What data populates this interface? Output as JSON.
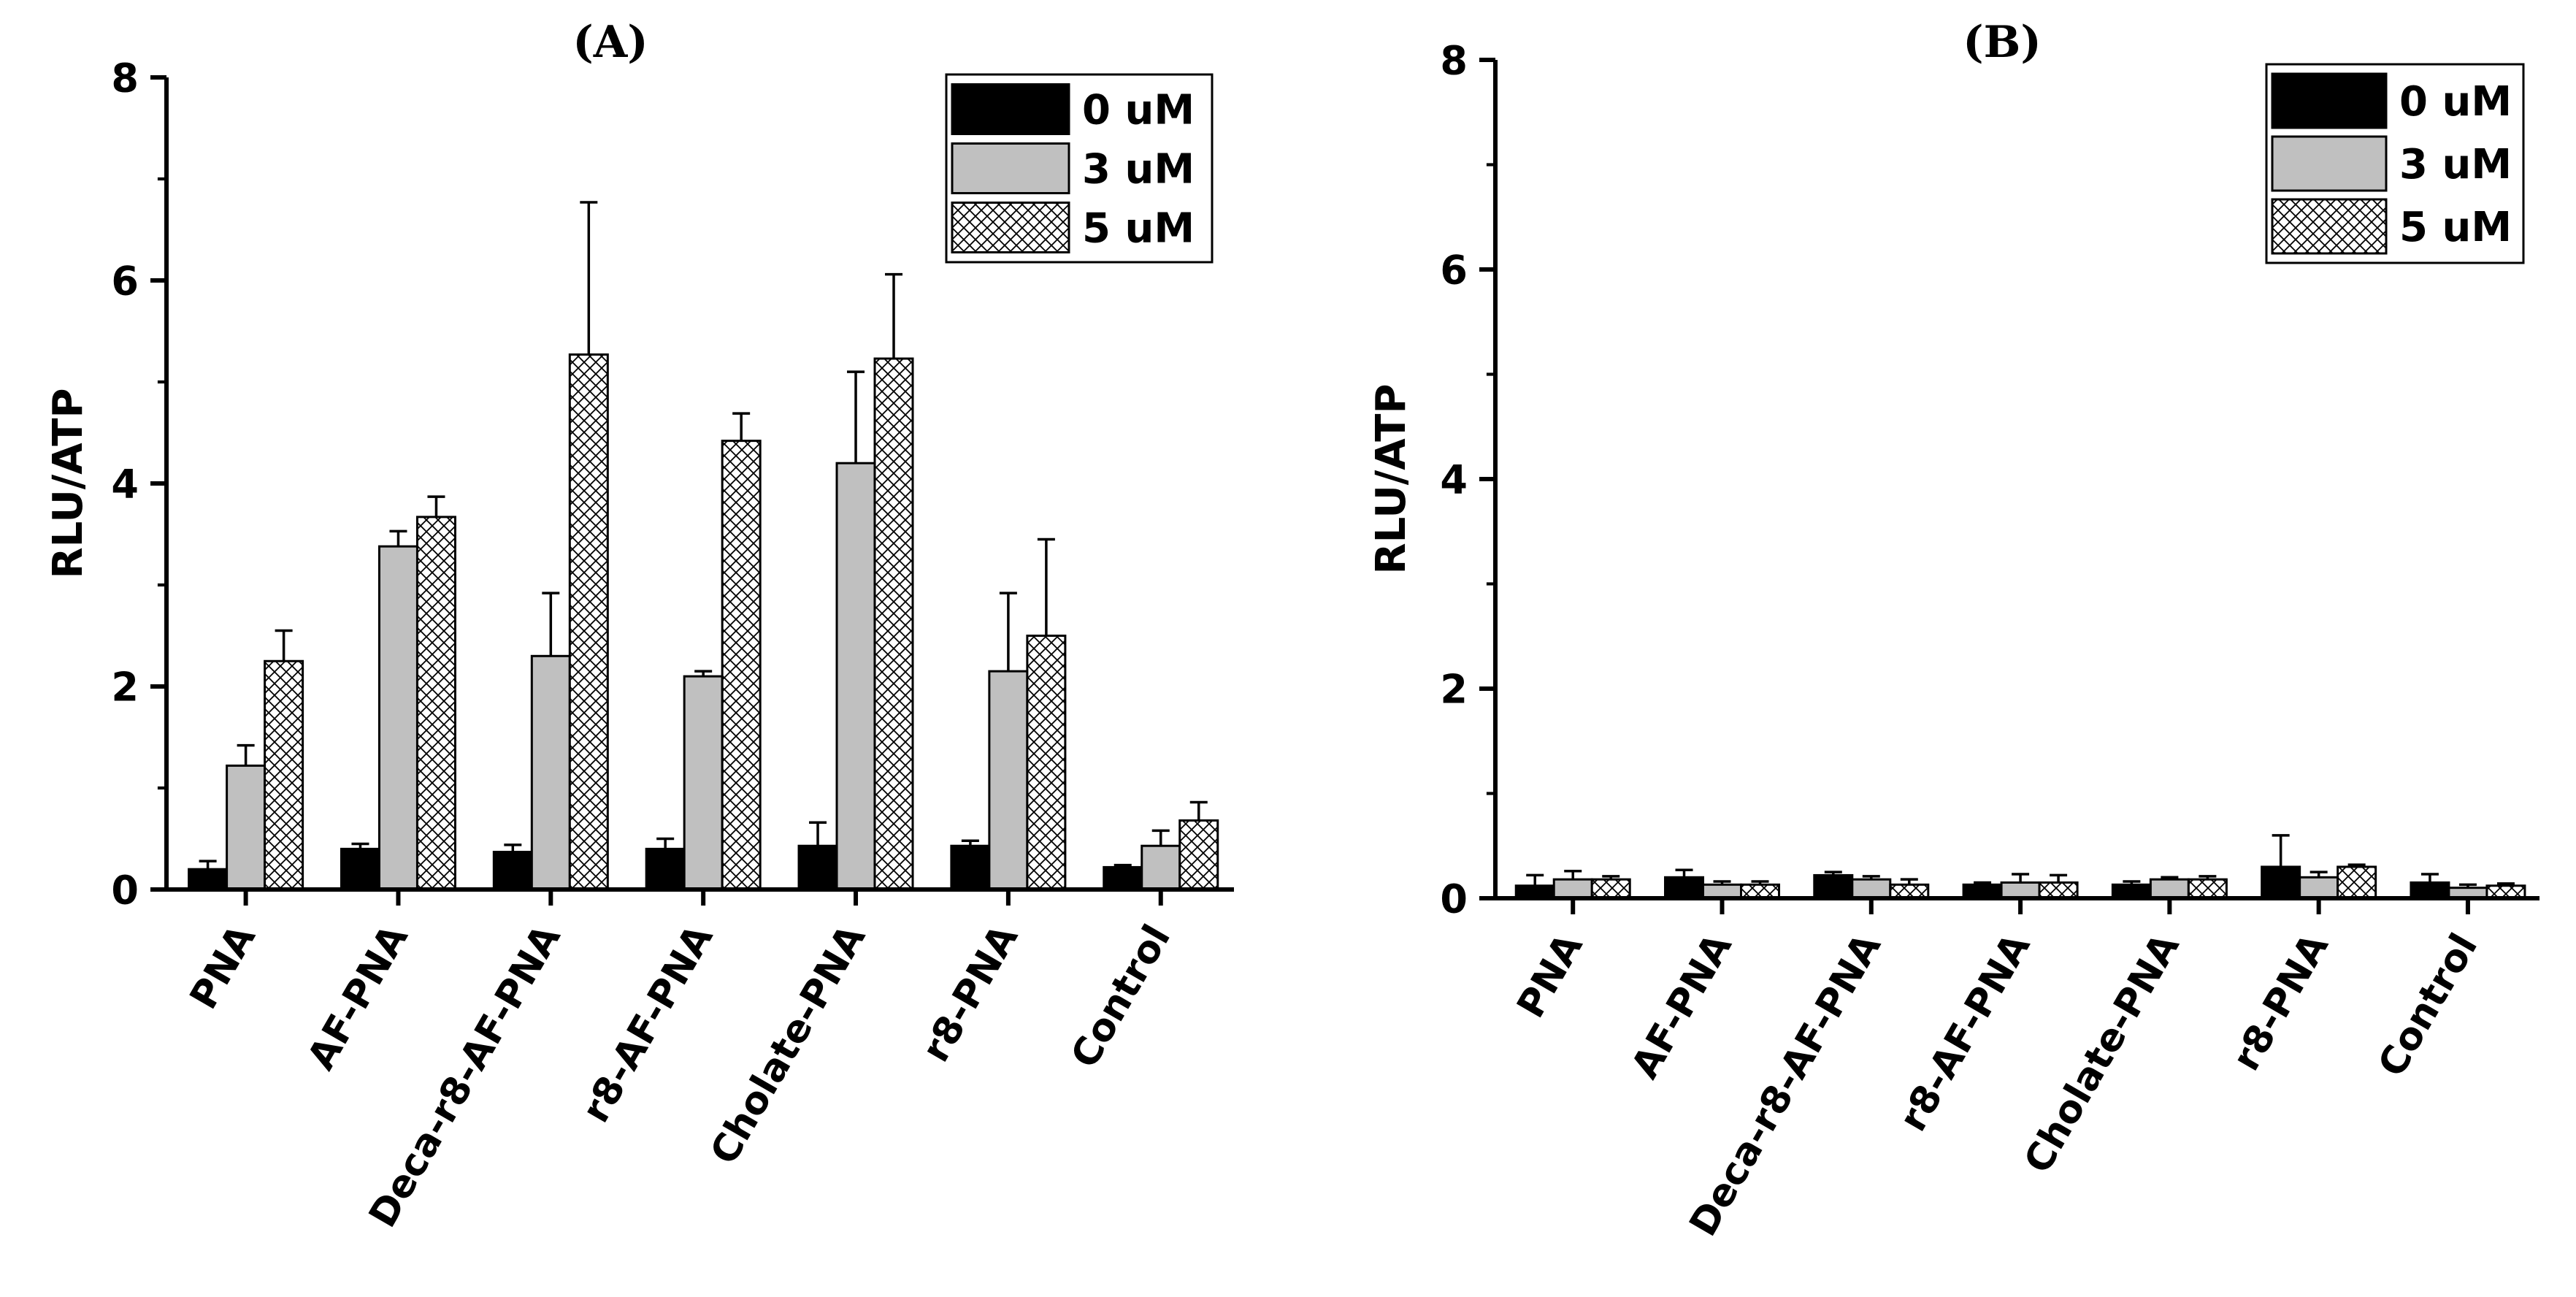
{
  "figure": {
    "colors": {
      "background": "#ffffff",
      "axis": "#000000",
      "series_0uM": "#000000",
      "series_3uM": "#c0c0c0",
      "series_5uM_fill": "#ffffff",
      "series_5uM_hatch": "#000000"
    }
  },
  "chart_data": [
    {
      "panel": "A",
      "title": "(A)",
      "type": "bar",
      "ylabel": "RLU/ATP",
      "xlabel": "",
      "ylim": [
        0,
        8
      ],
      "yticks": [
        "0",
        "2",
        "4",
        "6",
        "8"
      ],
      "grid": false,
      "legend_position": "top-right",
      "categories": [
        "PNA",
        "AF-PNA",
        "Deca-r8-AF-PNA",
        "r8-AF-PNA",
        "Cholate-PNA",
        "r8-PNA",
        "Control"
      ],
      "series": [
        {
          "name": "0 uM",
          "pattern": "solid-black",
          "values": [
            0.2,
            0.4,
            0.37,
            0.4,
            0.43,
            0.43,
            0.22
          ],
          "errors": [
            0.08,
            0.05,
            0.07,
            0.1,
            0.23,
            0.05,
            0.02
          ]
        },
        {
          "name": "3 uM",
          "pattern": "solid-gray",
          "values": [
            1.22,
            3.38,
            2.3,
            2.1,
            4.2,
            2.15,
            0.43
          ],
          "errors": [
            0.2,
            0.15,
            0.62,
            0.05,
            0.9,
            0.77,
            0.15
          ]
        },
        {
          "name": "5 uM",
          "pattern": "crosshatch",
          "values": [
            2.25,
            3.67,
            5.27,
            4.42,
            5.23,
            2.5,
            0.68
          ],
          "errors": [
            0.3,
            0.2,
            1.5,
            0.27,
            0.83,
            0.95,
            0.18
          ]
        }
      ]
    },
    {
      "panel": "B",
      "title": "(B)",
      "type": "bar",
      "ylabel": "RLU/ATP",
      "xlabel": "",
      "ylim": [
        0,
        8
      ],
      "yticks": [
        "0",
        "2",
        "4",
        "6",
        "8"
      ],
      "grid": false,
      "legend_position": "top-right",
      "categories": [
        "PNA",
        "AF-PNA",
        "Deca-r8-AF-PNA",
        "r8-AF-PNA",
        "Cholate-PNA",
        "r8-PNA",
        "Control"
      ],
      "series": [
        {
          "name": "0 uM",
          "pattern": "solid-black",
          "values": [
            0.12,
            0.2,
            0.22,
            0.13,
            0.13,
            0.3,
            0.15
          ],
          "errors": [
            0.1,
            0.07,
            0.03,
            0.02,
            0.03,
            0.3,
            0.08
          ]
        },
        {
          "name": "3 uM",
          "pattern": "solid-gray",
          "values": [
            0.18,
            0.13,
            0.18,
            0.15,
            0.18,
            0.2,
            0.1
          ],
          "errors": [
            0.08,
            0.03,
            0.03,
            0.08,
            0.02,
            0.05,
            0.03
          ]
        },
        {
          "name": "5 uM",
          "pattern": "crosshatch",
          "values": [
            0.18,
            0.13,
            0.13,
            0.15,
            0.18,
            0.3,
            0.12
          ],
          "errors": [
            0.03,
            0.03,
            0.05,
            0.07,
            0.03,
            0.02,
            0.02
          ]
        }
      ]
    }
  ]
}
